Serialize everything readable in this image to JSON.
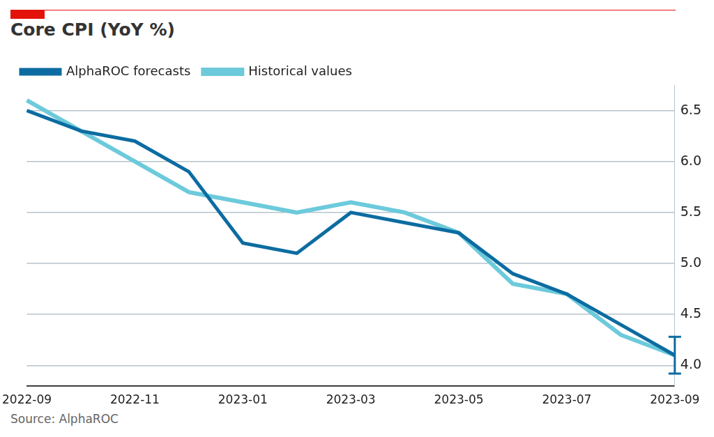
{
  "chart_data": {
    "type": "line",
    "title": "Core CPI (YoY %)",
    "source": "Source: AlphaROC",
    "categories": [
      "2022-09",
      null,
      "2022-11",
      null,
      "2023-01",
      null,
      "2023-03",
      null,
      "2023-05",
      null,
      "2023-07",
      null,
      "2023-09"
    ],
    "series": [
      {
        "name": "Historical values",
        "color": "#6ccadb",
        "values": [
          6.6,
          6.3,
          6.0,
          5.7,
          5.6,
          5.5,
          5.6,
          5.5,
          5.3,
          4.8,
          4.7,
          4.3,
          4.1
        ]
      },
      {
        "name": "AlphaROC forecasts",
        "color": "#0c6ca1",
        "values": [
          6.5,
          6.3,
          6.2,
          5.9,
          5.2,
          5.1,
          5.5,
          5.4,
          5.3,
          4.9,
          4.7,
          4.4,
          4.1
        ],
        "error_range": [
          null,
          null,
          null,
          null,
          null,
          null,
          null,
          null,
          null,
          null,
          null,
          null,
          [
            3.92,
            4.28
          ]
        ]
      }
    ],
    "ylim": [
      3.8,
      6.75
    ],
    "yticks": [
      {
        "value": 4,
        "label": "4.0"
      },
      {
        "value": 4.5,
        "label": "4.5"
      },
      {
        "value": 5,
        "label": "5.0"
      },
      {
        "value": 5.5,
        "label": "5.5"
      },
      {
        "value": 6,
        "label": "6.0"
      },
      {
        "value": 6.5,
        "label": "6.5"
      }
    ],
    "grid": true,
    "legend": "top-left"
  }
}
